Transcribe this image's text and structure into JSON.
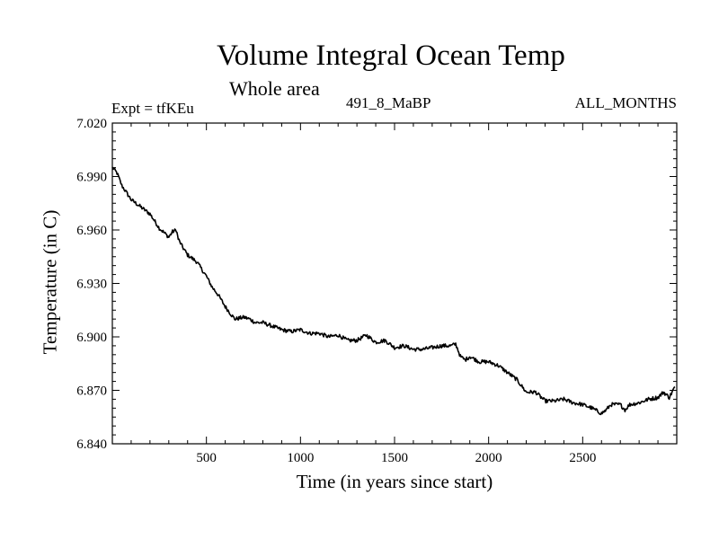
{
  "chart_data": {
    "type": "line",
    "title": "Volume Integral Ocean Temp",
    "subtitle": "Whole area",
    "annotations": {
      "left": "Expt = tfKEu",
      "center": "491_8_MaBP",
      "right": "ALL_MONTHS"
    },
    "xlabel": "Time (in years since start)",
    "ylabel": "Temperature (in C)",
    "xlim": [
      0,
      3000
    ],
    "ylim": [
      6.84,
      7.02
    ],
    "xticks": [
      500,
      1000,
      1500,
      2000,
      2500
    ],
    "xtick_labels": [
      "500",
      "1000",
      "1500",
      "2000",
      "2500"
    ],
    "yticks": [
      6.84,
      6.87,
      6.9,
      6.93,
      6.96,
      6.99,
      7.02
    ],
    "ytick_labels": [
      "6.840",
      "6.870",
      "6.900",
      "6.930",
      "6.960",
      "6.990",
      "7.020"
    ],
    "grid": false,
    "legend": "none",
    "line_color": "#000000",
    "series": [
      {
        "x": [
          0,
          25,
          50,
          75,
          100,
          150,
          200,
          250,
          300,
          320,
          340,
          350,
          370,
          400,
          450,
          500,
          530,
          560,
          600,
          650,
          700,
          730,
          760,
          800,
          850,
          900,
          950,
          1000,
          1050,
          1100,
          1150,
          1200,
          1250,
          1300,
          1350,
          1400,
          1450,
          1500,
          1550,
          1600,
          1650,
          1700,
          1750,
          1800,
          1825,
          1850,
          1875,
          1900,
          1950,
          2000,
          2050,
          2100,
          2150,
          2200,
          2250,
          2300,
          2350,
          2400,
          2450,
          2500,
          2550,
          2600,
          2625,
          2650,
          2700,
          2725,
          2750,
          2800,
          2850,
          2900,
          2930,
          2960,
          2990
        ],
        "y": [
          6.995,
          6.992,
          6.985,
          6.981,
          6.977,
          6.973,
          6.969,
          6.961,
          6.956,
          6.959,
          6.96,
          6.955,
          6.951,
          6.946,
          6.942,
          6.934,
          6.928,
          6.924,
          6.917,
          6.91,
          6.911,
          6.91,
          6.908,
          6.908,
          6.906,
          6.904,
          6.903,
          6.904,
          6.902,
          6.902,
          6.9,
          6.901,
          6.898,
          6.898,
          6.901,
          6.897,
          6.898,
          6.894,
          6.895,
          6.893,
          6.893,
          6.894,
          6.895,
          6.895,
          6.896,
          6.889,
          6.887,
          6.889,
          6.886,
          6.886,
          6.884,
          6.88,
          6.876,
          6.869,
          6.869,
          6.864,
          6.864,
          6.865,
          6.863,
          6.862,
          6.86,
          6.857,
          6.859,
          6.862,
          6.862,
          6.859,
          6.862,
          6.863,
          6.865,
          6.866,
          6.869,
          6.866,
          6.872
        ]
      }
    ]
  }
}
